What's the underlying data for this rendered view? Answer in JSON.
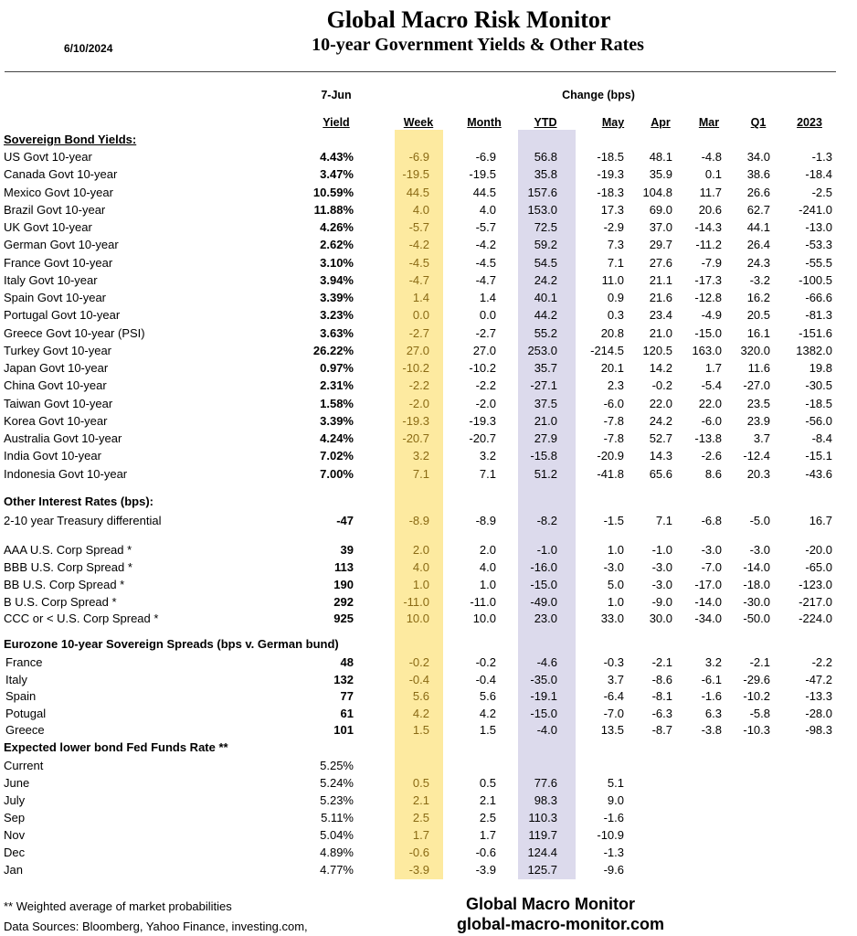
{
  "header": {
    "title": "Global Macro Risk Monitor",
    "subtitle": "10-year Government Yields & Other Rates",
    "date": "6/10/2024"
  },
  "table": {
    "group_labels": [
      "7-Jun",
      "Change (bps)"
    ],
    "columns": [
      "Yield",
      "Week",
      "Month",
      "YTD",
      "May",
      "Apr",
      "Mar",
      "Q1",
      "2023"
    ],
    "sections": [
      {
        "title": "Sovereign Bond Yields:",
        "rows": [
          [
            "US Govt 10-year",
            "4.43%",
            "-6.9",
            "-6.9",
            "56.8",
            "-18.5",
            "48.1",
            "-4.8",
            "34.0",
            "-1.3"
          ],
          [
            "Canada Govt 10-year",
            "3.47%",
            "-19.5",
            "-19.5",
            "35.8",
            "-19.3",
            "35.9",
            "0.1",
            "38.6",
            "-18.4"
          ],
          [
            "Mexico Govt 10-year",
            "10.59%",
            "44.5",
            "44.5",
            "157.6",
            "-18.3",
            "104.8",
            "11.7",
            "26.6",
            "-2.5"
          ],
          [
            "Brazil Govt 10-year",
            "11.88%",
            "4.0",
            "4.0",
            "153.0",
            "17.3",
            "69.0",
            "20.6",
            "62.7",
            "-241.0"
          ],
          [
            "UK Govt 10-year",
            "4.26%",
            "-5.7",
            "-5.7",
            "72.5",
            "-2.9",
            "37.0",
            "-14.3",
            "44.1",
            "-13.0"
          ],
          [
            "German Govt 10-year",
            "2.62%",
            "-4.2",
            "-4.2",
            "59.2",
            "7.3",
            "29.7",
            "-11.2",
            "26.4",
            "-53.3"
          ],
          [
            "France Govt 10-year",
            "3.10%",
            "-4.5",
            "-4.5",
            "54.5",
            "7.1",
            "27.6",
            "-7.9",
            "24.3",
            "-55.5"
          ],
          [
            "Italy Govt 10-year",
            "3.94%",
            "-4.7",
            "-4.7",
            "24.2",
            "11.0",
            "21.1",
            "-17.3",
            "-3.2",
            "-100.5"
          ],
          [
            "Spain Govt 10-year",
            "3.39%",
            "1.4",
            "1.4",
            "40.1",
            "0.9",
            "21.6",
            "-12.8",
            "16.2",
            "-66.6"
          ],
          [
            "Portugal Govt 10-year",
            "3.23%",
            "0.0",
            "0.0",
            "44.2",
            "0.3",
            "23.4",
            "-4.9",
            "20.5",
            "-81.3"
          ],
          [
            "Greece Govt 10-year (PSI)",
            "3.63%",
            "-2.7",
            "-2.7",
            "55.2",
            "20.8",
            "21.0",
            "-15.0",
            "16.1",
            "-151.6"
          ],
          [
            "Turkey Govt 10-year",
            "26.22%",
            "27.0",
            "27.0",
            "253.0",
            "-214.5",
            "120.5",
            "163.0",
            "320.0",
            "1382.0"
          ],
          [
            "Japan Govt 10-year",
            "0.97%",
            "-10.2",
            "-10.2",
            "35.7",
            "20.1",
            "14.2",
            "1.7",
            "11.6",
            "19.8"
          ],
          [
            "China Govt 10-year",
            "2.31%",
            "-2.2",
            "-2.2",
            "-27.1",
            "2.3",
            "-0.2",
            "-5.4",
            "-27.0",
            "-30.5"
          ],
          [
            "Taiwan Govt 10-year",
            "1.58%",
            "-2.0",
            "-2.0",
            "37.5",
            "-6.0",
            "22.0",
            "22.0",
            "23.5",
            "-18.5"
          ],
          [
            "Korea Govt 10-year",
            "3.39%",
            "-19.3",
            "-19.3",
            "21.0",
            "-7.8",
            "24.2",
            "-6.0",
            "23.9",
            "-56.0"
          ],
          [
            "Australia Govt 10-year",
            "4.24%",
            "-20.7",
            "-20.7",
            "27.9",
            "-7.8",
            "52.7",
            "-13.8",
            "3.7",
            "-8.4"
          ],
          [
            "India Govt 10-year",
            "7.02%",
            "3.2",
            "3.2",
            "-15.8",
            "-20.9",
            "14.3",
            "-2.6",
            "-12.4",
            "-15.1"
          ],
          [
            "Indonesia Govt 10-year",
            "7.00%",
            "7.1",
            "7.1",
            "51.2",
            "-41.8",
            "65.6",
            "8.6",
            "20.3",
            "-43.6"
          ]
        ]
      },
      {
        "title": "Other Interest Rates  (bps):",
        "rows": [
          [
            "2-10 year Treasury differential",
            "-47",
            "-8.9",
            "-8.9",
            "-8.2",
            "-1.5",
            "7.1",
            "-6.8",
            "-5.0",
            "16.7"
          ],
          [
            "AAA U.S. Corp Spread *",
            "39",
            "2.0",
            "2.0",
            "-1.0",
            "1.0",
            "-1.0",
            "-3.0",
            "-3.0",
            "-20.0"
          ],
          [
            "BBB U.S. Corp Spread *",
            "113",
            "4.0",
            "4.0",
            "-16.0",
            "-3.0",
            "-3.0",
            "-7.0",
            "-14.0",
            "-65.0"
          ],
          [
            "BB U.S. Corp Spread *",
            "190",
            "1.0",
            "1.0",
            "-15.0",
            "5.0",
            "-3.0",
            "-17.0",
            "-18.0",
            "-123.0"
          ],
          [
            "B U.S. Corp Spread *",
            "292",
            "-11.0",
            "-11.0",
            "-49.0",
            "1.0",
            "-9.0",
            "-14.0",
            "-30.0",
            "-217.0"
          ],
          [
            "CCC or < U.S. Corp Spread *",
            "925",
            "10.0",
            "10.0",
            "23.0",
            "33.0",
            "30.0",
            "-34.0",
            "-50.0",
            "-224.0"
          ]
        ]
      },
      {
        "title": "Eurozone 10-year Sovereign Spreads (bps v. German bund)",
        "rows": [
          [
            "France",
            "48",
            "-0.2",
            "-0.2",
            "-4.6",
            "-0.3",
            "-2.1",
            "3.2",
            "-2.1",
            "-2.2"
          ],
          [
            "Italy",
            "132",
            "-0.4",
            "-0.4",
            "-35.0",
            "3.7",
            "-8.6",
            "-6.1",
            "-29.6",
            "-47.2"
          ],
          [
            "Spain",
            "77",
            "5.6",
            "5.6",
            "-19.1",
            "-6.4",
            "-8.1",
            "-1.6",
            "-10.2",
            "-13.3"
          ],
          [
            "Potugal",
            "61",
            "4.2",
            "4.2",
            "-15.0",
            "-7.0",
            "-6.3",
            "6.3",
            "-5.8",
            "-28.0"
          ],
          [
            "Greece",
            "101",
            "1.5",
            "1.5",
            "-4.0",
            "13.5",
            "-8.7",
            "-3.8",
            "-10.3",
            "-98.3"
          ]
        ]
      },
      {
        "title": "Expected lower bond Fed Funds Rate **",
        "rows": [
          [
            "Current",
            "5.25%"
          ],
          [
            "June",
            "5.24%",
            "0.5",
            "0.5",
            "77.6",
            "5.1"
          ],
          [
            "July",
            "5.23%",
            "2.1",
            "2.1",
            "98.3",
            "9.0"
          ],
          [
            "Sep",
            "5.11%",
            "2.5",
            "2.5",
            "110.3",
            "-1.6"
          ],
          [
            "Nov",
            "5.04%",
            "1.7",
            "1.7",
            "119.7",
            "-10.9"
          ],
          [
            "Dec",
            "4.89%",
            "-0.6",
            "-0.6",
            "124.4",
            "-1.3"
          ],
          [
            "Jan",
            "4.77%",
            "-3.9",
            "-3.9",
            "125.7",
            "-9.6"
          ]
        ]
      }
    ]
  },
  "footer": {
    "note": "** Weighted average of market probabilities",
    "sources": "Data Sources:  Bloomberg,  Yahoo Finance, investing.com,",
    "brand": "Global Macro Monitor",
    "url": "global-macro-monitor.com"
  }
}
